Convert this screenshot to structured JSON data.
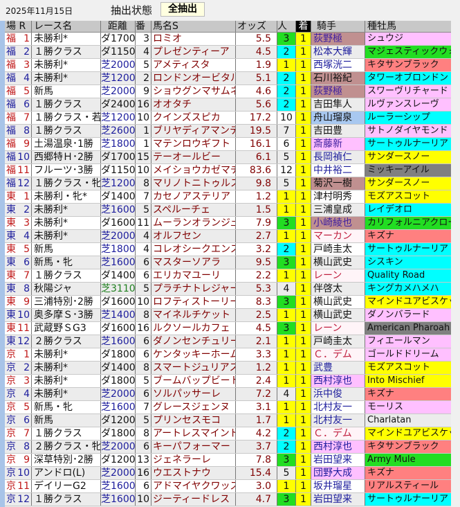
{
  "header": {
    "date": "2025年11月15日",
    "state_label": "抽出状態",
    "filter_button": "全抽出"
  },
  "columns": {
    "venue_r": "場 R",
    "race": "レース名",
    "distance": "距離",
    "number": "番",
    "horse": "馬名S",
    "odds": "オッズ",
    "popularity": "人",
    "finish": "着",
    "jockey": "騎手",
    "sire": "種牡馬"
  },
  "colors": {
    "pop1": "#ffff00",
    "pop2": "#00ffff",
    "pop3": "#22dd22",
    "turf": "#1c1c9c",
    "dirt": "#111111",
    "turf_long": "#208020",
    "venue_odd": "#c01818",
    "venue_even": "#1c1c9c"
  },
  "rows": [
    {
      "venue": "福",
      "r": "1",
      "race": "未勝利*",
      "dist": "ダ1700",
      "no": "3",
      "horse": "ロミオ",
      "odds": "5.5",
      "pop": "3",
      "finish": "1",
      "jockey": "荻野極",
      "jbg": "#c09090",
      "jc": "#4020a0",
      "sire": "シュウジ",
      "sbg": "#ffc0ff"
    },
    {
      "venue": "福",
      "r": "2",
      "race": "１勝クラス",
      "dist": "ダ1150",
      "no": "4",
      "horse": "プレゼンティーア",
      "odds": "4.5",
      "pop": "2",
      "finish": "1",
      "jockey": "松本大輝",
      "jbg": "",
      "jc": "#1c1c9c",
      "sire": "マジェスティックウォリ",
      "sbg": "#22dd22"
    },
    {
      "venue": "福",
      "r": "3",
      "race": "未勝利*",
      "dist": "芝2000",
      "no": "5",
      "horse": "アメティスタ",
      "odds": "1.9",
      "pop": "1",
      "finish": "1",
      "jockey": "西塚洸二",
      "jbg": "",
      "jc": "#1c1c9c",
      "sire": "キタサンブラック",
      "sbg": "#ff8080"
    },
    {
      "venue": "福",
      "r": "4",
      "race": "未勝利*",
      "dist": "芝1200",
      "no": "2",
      "horse": "ロンドンオービタル",
      "odds": "5.1",
      "pop": "2",
      "finish": "1",
      "jockey": "石川裕紀",
      "jbg": "#c09090",
      "jc": "#111111",
      "sire": "タワーオブロンドン",
      "sbg": "#00ffff"
    },
    {
      "venue": "福",
      "r": "5",
      "race": "新馬",
      "dist": "芝2000",
      "no": "9",
      "horse": "ショウグンマサムネ",
      "odds": "4.6",
      "pop": "2",
      "finish": "1",
      "jockey": "荻野極",
      "jbg": "#c09090",
      "jc": "#4020a0",
      "sire": "スワーヴリチャード",
      "sbg": "#ffc0ff"
    },
    {
      "venue": "福",
      "r": "6",
      "race": "１勝クラス",
      "dist": "ダ2400",
      "no": "16",
      "horse": "オオタチ",
      "odds": "5.6",
      "pop": "2",
      "finish": "1",
      "jockey": "吉田隼人",
      "jbg": "",
      "jc": "#111111",
      "sire": "ルヴァンスレーヴ",
      "sbg": "#ffc0ff"
    },
    {
      "venue": "福",
      "r": "7",
      "race": "１勝クラス・若",
      "dist": "芝1200",
      "no": "10",
      "horse": "クインズスピカ",
      "odds": "17.2",
      "pop": "10",
      "finish": "1",
      "jockey": "舟山瑠泉",
      "jbg": "#a8c8f0",
      "jc": "#111111",
      "sire": "ルーラーシップ",
      "sbg": "#00ffff"
    },
    {
      "venue": "福",
      "r": "8",
      "race": "１勝クラス",
      "dist": "芝2600",
      "no": "1",
      "horse": "ブリヤディアマンテ",
      "odds": "19.5",
      "pop": "7",
      "finish": "1",
      "jockey": "吉田豊",
      "jbg": "",
      "jc": "#111111",
      "sire": "サトノダイヤモンド",
      "sbg": "#ffc0ff"
    },
    {
      "venue": "福",
      "r": "9",
      "race": "土湯温泉･1勝",
      "dist": "芝1800",
      "no": "1",
      "horse": "マテンロウギフト",
      "odds": "16.1",
      "pop": "6",
      "finish": "1",
      "jockey": "斎藤新",
      "jbg": "#ffc0ff",
      "jc": "#4020a0",
      "sire": "サートゥルナーリア",
      "sbg": "#00ffff"
    },
    {
      "venue": "福",
      "r": "10",
      "race": "西郷特Ｈ･2勝",
      "dist": "ダ1700",
      "no": "15",
      "horse": "テーオールビー",
      "odds": "6.1",
      "pop": "5",
      "finish": "1",
      "jockey": "長岡禎仁",
      "jbg": "",
      "jc": "#1c1c9c",
      "sire": "サンダースノー",
      "sbg": "#ffff00"
    },
    {
      "venue": "福",
      "r": "11",
      "race": "フルーツ･3勝",
      "dist": "ダ1150",
      "no": "10",
      "horse": "メイショウカゼマチ",
      "odds": "83.6",
      "pop": "12",
      "finish": "1",
      "jockey": "中井裕二",
      "jbg": "",
      "jc": "#1c1c9c",
      "sire": "ミッキーアイル",
      "sbg": "#808080"
    },
    {
      "venue": "福",
      "r": "12",
      "race": "１勝クラス・牝",
      "dist": "芝1200",
      "no": "8",
      "horse": "マリノトニトゥルス",
      "odds": "9.8",
      "pop": "5",
      "finish": "1",
      "jockey": "菊沢一樹",
      "jbg": "#c09090",
      "jc": "#111111",
      "sire": "サンダースノー",
      "sbg": "#ffff00"
    },
    {
      "venue": "東",
      "r": "1",
      "race": "未勝利・牝*",
      "dist": "ダ1400",
      "no": "7",
      "horse": "カセノアステリア",
      "odds": "1.2",
      "pop": "1",
      "finish": "1",
      "jockey": "津村明秀",
      "jbg": "",
      "jc": "#111111",
      "sire": "モズアスコット",
      "sbg": "#ffff00"
    },
    {
      "venue": "東",
      "r": "2",
      "race": "未勝利*",
      "dist": "芝1600",
      "no": "5",
      "horse": "スペルーチェ",
      "odds": "1.5",
      "pop": "1",
      "finish": "1",
      "jockey": "三浦皇成",
      "jbg": "",
      "jc": "#111111",
      "sire": "レイデオロ",
      "sbg": "#00ffff"
    },
    {
      "venue": "東",
      "r": "3",
      "race": "未勝利*",
      "dist": "ダ1600",
      "no": "11",
      "horse": "ムーランオランジュ",
      "odds": "7.9",
      "pop": "3",
      "finish": "1",
      "jockey": "小崎綾也",
      "jbg": "#c09090",
      "jc": "#4020a0",
      "sire": "カリフォルニアクローム",
      "sbg": "#22dd22"
    },
    {
      "venue": "東",
      "r": "4",
      "race": "未勝利*",
      "dist": "芝2000",
      "no": "4",
      "horse": "オルフセン",
      "odds": "2.7",
      "pop": "1",
      "finish": "1",
      "jockey": "マーカン",
      "jbg": "#fff4f8",
      "jc": "#c02040",
      "sire": "キズナ",
      "sbg": "#ff8080"
    },
    {
      "venue": "東",
      "r": "5",
      "race": "新馬",
      "dist": "芝1800",
      "no": "4",
      "horse": "コレオシークエンス",
      "odds": "3.2",
      "pop": "2",
      "finish": "1",
      "jockey": "戸崎圭太",
      "jbg": "",
      "jc": "#111111",
      "sire": "サートゥルナーリア",
      "sbg": "#00ffff"
    },
    {
      "venue": "東",
      "r": "6",
      "race": "新馬・牝",
      "dist": "芝1600",
      "no": "6",
      "horse": "マスターソアラ",
      "odds": "9.5",
      "pop": "3",
      "finish": "1",
      "jockey": "横山武史",
      "jbg": "",
      "jc": "#111111",
      "sire": "シスキン",
      "sbg": "#00ffff"
    },
    {
      "venue": "東",
      "r": "7",
      "race": "１勝クラス",
      "dist": "ダ1400",
      "no": "6",
      "horse": "エリカマユーリ",
      "odds": "2.2",
      "pop": "1",
      "finish": "1",
      "jockey": "レーン",
      "jbg": "#fff4f8",
      "jc": "#c02040",
      "sire": "Quality Road",
      "sbg": "#00ffff"
    },
    {
      "venue": "東",
      "r": "8",
      "race": "秋陽ジャ",
      "dist": "芝3110",
      "no": "5",
      "horse": "プラチナトレジャー",
      "odds": "5.3",
      "pop": "4",
      "finish": "1",
      "jockey": "伴啓太",
      "jbg": "",
      "jc": "#111111",
      "sire": "キングカメハメハ",
      "sbg": "#00ffff"
    },
    {
      "venue": "東",
      "r": "9",
      "race": "三浦特別･2勝",
      "dist": "ダ1600",
      "no": "10",
      "horse": "ロフティストーリー",
      "odds": "8.3",
      "pop": "3",
      "finish": "1",
      "jockey": "横山武史",
      "jbg": "",
      "jc": "#111111",
      "sire": "マインドユアビスケッツ",
      "sbg": "#ffff00"
    },
    {
      "venue": "東",
      "r": "10",
      "race": "奥多摩Ｓ･3勝",
      "dist": "芝1400",
      "no": "8",
      "horse": "マイネルチケット",
      "odds": "2.5",
      "pop": "1",
      "finish": "1",
      "jockey": "横山武史",
      "jbg": "",
      "jc": "#111111",
      "sire": "ダノンバラード",
      "sbg": "#ffc0ff"
    },
    {
      "venue": "東",
      "r": "11",
      "race": "武蔵野ＳG3",
      "dist": "ダ1600",
      "no": "16",
      "horse": "ルクソールカフェ",
      "odds": "4.5",
      "pop": "3",
      "finish": "1",
      "jockey": "レーン",
      "jbg": "#fff4f8",
      "jc": "#c02040",
      "sire": "American Pharoah",
      "sbg": "#808080"
    },
    {
      "venue": "東",
      "r": "12",
      "race": "２勝クラス",
      "dist": "芝1600",
      "no": "6",
      "horse": "ダノンセンチュリー",
      "odds": "2.1",
      "pop": "1",
      "finish": "1",
      "jockey": "戸崎圭太",
      "jbg": "",
      "jc": "#111111",
      "sire": "フィエールマン",
      "sbg": "#ffc0ff"
    },
    {
      "venue": "京",
      "r": "1",
      "race": "未勝利*",
      "dist": "ダ1800",
      "no": "6",
      "horse": "ケンタッキーホーム",
      "odds": "3.3",
      "pop": "1",
      "finish": "1",
      "jockey": "Ｃ．デム",
      "jbg": "#fff4f8",
      "jc": "#c02040",
      "sire": "ゴールドドリーム",
      "sbg": "#ffc0ff"
    },
    {
      "venue": "京",
      "r": "2",
      "race": "未勝利*",
      "dist": "ダ1400",
      "no": "8",
      "horse": "スマートジュリアス",
      "odds": "1.2",
      "pop": "1",
      "finish": "1",
      "jockey": "武豊",
      "jbg": "",
      "jc": "#1c1c9c",
      "sire": "モズアスコット",
      "sbg": "#ffff00"
    },
    {
      "venue": "京",
      "r": "3",
      "race": "未勝利*",
      "dist": "ダ1800",
      "no": "5",
      "horse": "ブームバップビート",
      "odds": "2.4",
      "pop": "1",
      "finish": "1",
      "jockey": "西村淳也",
      "jbg": "#ffc0ff",
      "jc": "#1c1c9c",
      "sire": "Into Mischief",
      "sbg": "#ffff00"
    },
    {
      "venue": "京",
      "r": "4",
      "race": "未勝利*",
      "dist": "芝2000",
      "no": "6",
      "horse": "ソルパッサーレ",
      "odds": "7.2",
      "pop": "4",
      "finish": "1",
      "jockey": "浜中俊",
      "jbg": "",
      "jc": "#1c1c9c",
      "sire": "キズナ",
      "sbg": "#ff8080"
    },
    {
      "venue": "京",
      "r": "5",
      "race": "新馬・牝",
      "dist": "芝1600",
      "no": "7",
      "horse": "グレースジェンヌ",
      "odds": "3.1",
      "pop": "1",
      "finish": "1",
      "jockey": "北村友一",
      "jbg": "",
      "jc": "#1c1c9c",
      "sire": "モーリス",
      "sbg": "#ffc0ff"
    },
    {
      "venue": "京",
      "r": "6",
      "race": "新馬",
      "dist": "ダ1200",
      "no": "5",
      "horse": "プリンセスモコ",
      "odds": "1.7",
      "pop": "1",
      "finish": "1",
      "jockey": "北村友一",
      "jbg": "",
      "jc": "#1c1c9c",
      "sire": "Charlatan",
      "sbg": ""
    },
    {
      "venue": "京",
      "r": "7",
      "race": "１勝クラス",
      "dist": "ダ1800",
      "no": "8",
      "horse": "アートレスマインド",
      "odds": "4.2",
      "pop": "2",
      "finish": "1",
      "jockey": "Ｃ．デム",
      "jbg": "#fff4f8",
      "jc": "#c02040",
      "sire": "マインドユアビスケッツ",
      "sbg": "#ffff00"
    },
    {
      "venue": "京",
      "r": "8",
      "race": "２勝クラス・牝",
      "dist": "芝2000",
      "no": "6",
      "horse": "キーパフォーマー",
      "odds": "3.7",
      "pop": "2",
      "finish": "1",
      "jockey": "西村淳也",
      "jbg": "#ffc0ff",
      "jc": "#1c1c9c",
      "sire": "キタサンブラック",
      "sbg": "#ff8080"
    },
    {
      "venue": "京",
      "r": "9",
      "race": "深草特別･2勝",
      "dist": "ダ1200",
      "no": "13",
      "horse": "ジェネラーレ",
      "odds": "7.8",
      "pop": "3",
      "finish": "1",
      "jockey": "岩田望来",
      "jbg": "",
      "jc": "#1c1c9c",
      "sire": "Army Mule",
      "sbg": "#22dd22"
    },
    {
      "venue": "京",
      "r": "10",
      "race": "アンドロ(L)",
      "dist": "芝2000",
      "no": "16",
      "horse": "ウエストナウ",
      "odds": "15.4",
      "pop": "5",
      "finish": "1",
      "jockey": "団野大成",
      "jbg": "#ffc0ff",
      "jc": "#1c1c9c",
      "sire": "キズナ",
      "sbg": "#ff8080"
    },
    {
      "venue": "京",
      "r": "11",
      "race": "デイリーG2",
      "dist": "芝1600",
      "no": "6",
      "horse": "アドマイヤクワッズ",
      "odds": "3.0",
      "pop": "1",
      "finish": "1",
      "jockey": "坂井瑠星",
      "jbg": "",
      "jc": "#1c1c9c",
      "sire": "リアルスティール",
      "sbg": "#ff8080"
    },
    {
      "venue": "京",
      "r": "12",
      "race": "１勝クラス",
      "dist": "芝1600",
      "no": "10",
      "horse": "ジーティードレス",
      "odds": "4.7",
      "pop": "3",
      "finish": "1",
      "jockey": "岩田望来",
      "jbg": "",
      "jc": "#1c1c9c",
      "sire": "サートゥルナーリア",
      "sbg": "#00ffff"
    }
  ]
}
